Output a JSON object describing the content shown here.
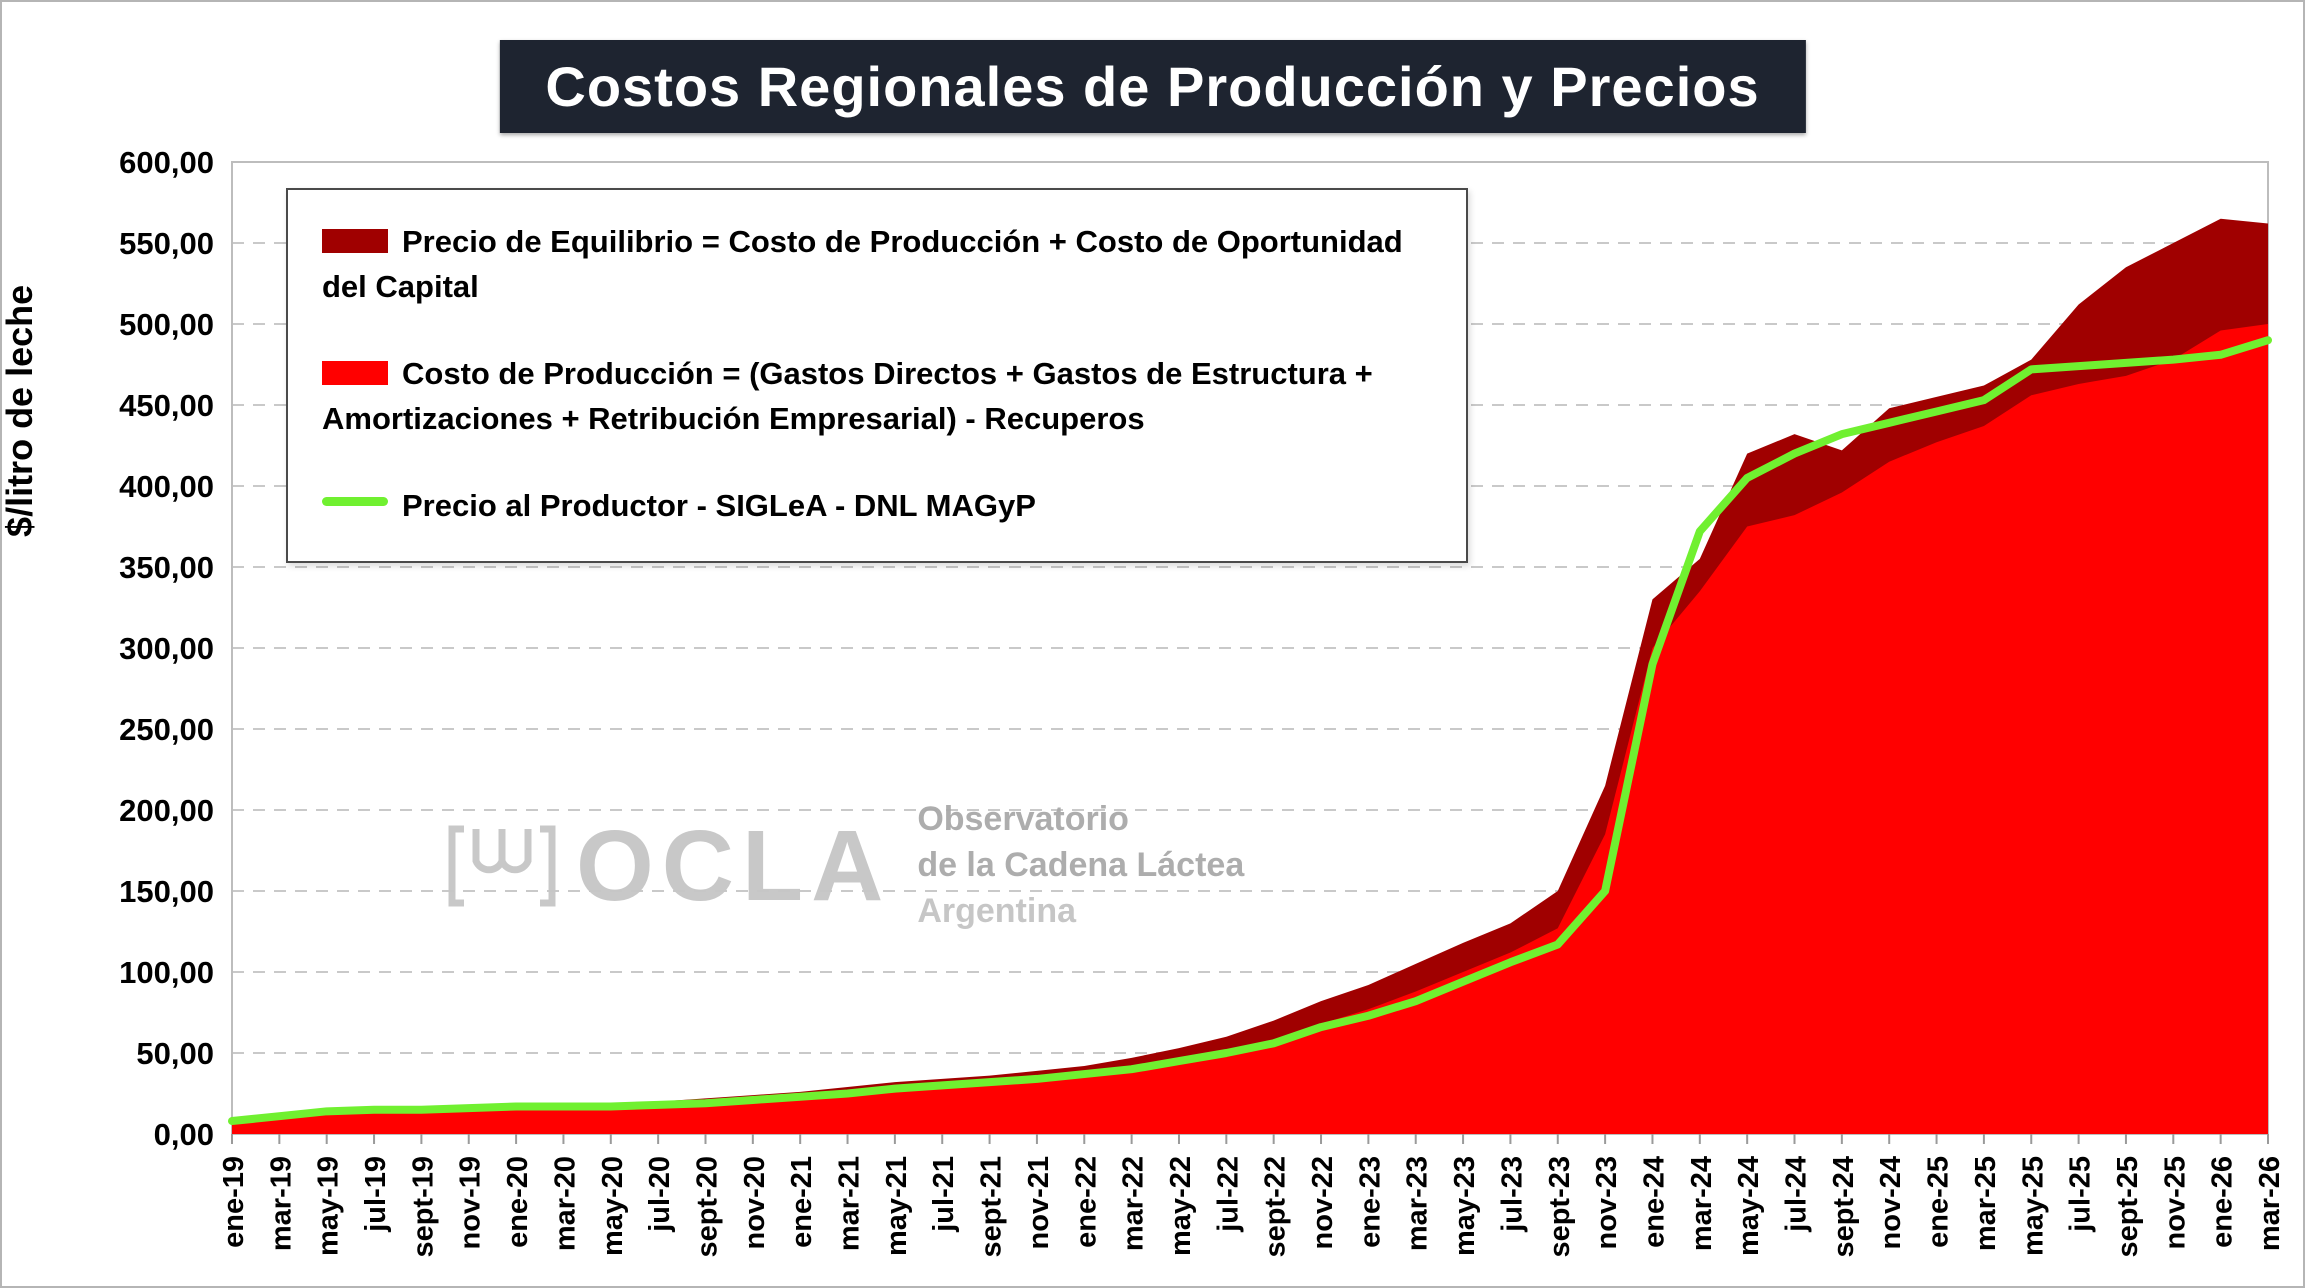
{
  "title": "Costos Regionales de Producción y Precios",
  "y_axis_label": "$/litro de leche",
  "legend": {
    "items": [
      {
        "label": "Precio de Equilibrio = Costo de Producción + Costo de Oportunidad del Capital",
        "color": "#A00000",
        "type": "area"
      },
      {
        "label": "Costo de Producción = (Gastos Directos + Gastos de Estructura + Amortizaciones + Retribución Empresarial) - Recuperos",
        "color": "#FF0000",
        "type": "area"
      },
      {
        "label": "Precio al Productor - SIGLeA - DNL MAGyP",
        "color": "#70F030",
        "type": "line"
      }
    ]
  },
  "watermark": {
    "logo": "OCLA",
    "line1": "Observatorio",
    "line2": "de la Cadena Láctea",
    "line3": "Argentina"
  },
  "chart_data": {
    "type": "area",
    "title": "Costos Regionales de Producción y Precios",
    "xlabel": "",
    "ylabel": "$/litro de leche",
    "ylim": [
      0,
      600
    ],
    "ytick_step": 50,
    "grid": "horizontal-dashed",
    "legend_position": "top-left",
    "categories": [
      "ene-19",
      "mar-19",
      "may-19",
      "jul-19",
      "sept-19",
      "nov-19",
      "ene-20",
      "mar-20",
      "may-20",
      "jul-20",
      "sept-20",
      "nov-20",
      "ene-21",
      "mar-21",
      "may-21",
      "jul-21",
      "sept-21",
      "nov-21",
      "ene-22",
      "mar-22",
      "may-22",
      "jul-22",
      "sept-22",
      "nov-22",
      "ene-23",
      "mar-23",
      "may-23",
      "jul-23",
      "sept-23",
      "nov-23",
      "ene-24",
      "mar-24",
      "may-24",
      "jul-24",
      "sept-24",
      "nov-24",
      "ene-25",
      "mar-25",
      "may-25",
      "jul-25",
      "sept-25",
      "nov-25",
      "ene-26",
      "mar-26"
    ],
    "series": [
      {
        "name": "Precio de Equilibrio = Costo de Producción + Costo de Oportunidad del Capital",
        "key": "equilibrio",
        "type": "area",
        "color": "#A00000",
        "values": [
          10,
          13,
          16,
          17,
          17,
          18,
          19,
          19,
          19,
          20,
          22,
          24,
          26,
          29,
          32,
          34,
          36,
          39,
          42,
          47,
          53,
          60,
          70,
          82,
          92,
          105,
          118,
          130,
          150,
          215,
          330,
          355,
          420,
          432,
          422,
          448,
          455,
          462,
          478,
          512,
          535,
          550,
          565,
          562
        ]
      },
      {
        "name": "Costo de Producción = (Gastos Directos + Gastos de Estructura + Amortizaciones + Retribución Empresarial) - Recuperos",
        "key": "costo",
        "type": "area",
        "color": "#FF0000",
        "values": [
          8,
          10,
          13,
          14,
          14,
          15,
          16,
          16,
          16,
          17,
          18,
          20,
          22,
          24,
          27,
          29,
          31,
          33,
          35,
          39,
          44,
          49,
          57,
          68,
          77,
          88,
          100,
          112,
          127,
          185,
          300,
          335,
          375,
          382,
          396,
          415,
          427,
          437,
          456,
          463,
          468,
          478,
          496,
          500
        ]
      },
      {
        "name": "Precio al Productor - SIGLeA - DNL MAGyP",
        "key": "precio",
        "type": "line",
        "color": "#70F030",
        "values": [
          8,
          11,
          14,
          15,
          15,
          16,
          17,
          17,
          17,
          18,
          19,
          21,
          23,
          25,
          28,
          30,
          32,
          34,
          37,
          40,
          45,
          50,
          56,
          66,
          73,
          82,
          94,
          106,
          117,
          150,
          290,
          372,
          405,
          420,
          432,
          439,
          446,
          453,
          472,
          474,
          476,
          478,
          481,
          490
        ]
      }
    ]
  }
}
